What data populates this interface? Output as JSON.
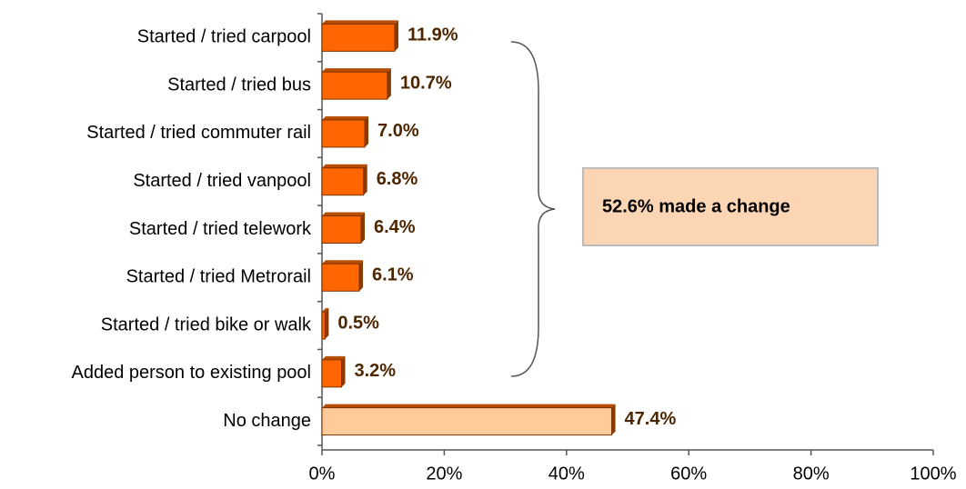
{
  "chart_data": {
    "type": "bar",
    "orientation": "horizontal",
    "categories": [
      "Started / tried carpool",
      "Started / tried bus",
      "Started / tried commuter rail",
      "Started / tried vanpool",
      "Started / tried telework",
      "Started / tried Metrorail",
      "Started / tried bike or walk",
      "Added person to existing pool",
      "No change"
    ],
    "values": [
      11.9,
      10.7,
      7.0,
      6.8,
      6.4,
      6.1,
      0.5,
      3.2,
      47.4
    ],
    "value_labels": [
      "11.9%",
      "10.7%",
      "7.0%",
      "6.8%",
      "6.4%",
      "6.1%",
      "0.5%",
      "3.2%",
      "47.4%"
    ],
    "colors": [
      "#ff6600",
      "#ff6600",
      "#ff6600",
      "#ff6600",
      "#ff6600",
      "#ff6600",
      "#ff6600",
      "#ff6600",
      "#ffcc99"
    ],
    "xlim": [
      0,
      100
    ],
    "xticks": [
      {
        "value": 0,
        "label": "0%"
      },
      {
        "value": 20,
        "label": "20%"
      },
      {
        "value": 40,
        "label": "40%"
      },
      {
        "value": 60,
        "label": "60%"
      },
      {
        "value": 80,
        "label": "80%"
      },
      {
        "value": 100,
        "label": "100%"
      }
    ],
    "annotation": "52.6% made a change"
  }
}
